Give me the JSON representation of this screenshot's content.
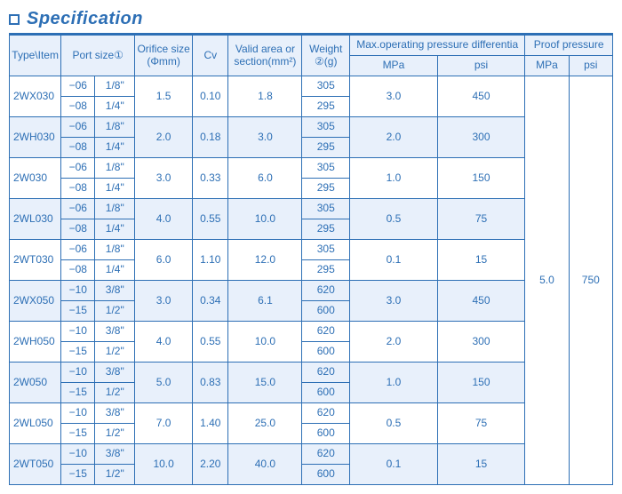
{
  "title": "Specification",
  "header": {
    "typeItem": "Type\\Item",
    "port": "Port size①",
    "orifice": "Orifice size (Φmm)",
    "cv": "Cv",
    "area": "Valid area or section(mm²)",
    "weight": "Weight ②(g)",
    "maxop_group": "Max.operating pressure differentia",
    "proof_group": "Proof pressure",
    "mpa": "MPa",
    "psi": "psi"
  },
  "groups": [
    {
      "type": "2WX030",
      "rows": [
        {
          "code": "−06",
          "port": "1/8\"",
          "weight": "305"
        },
        {
          "code": "−08",
          "port": "1/4\"",
          "weight": "295"
        }
      ],
      "orifice": "1.5",
      "cv": "0.10",
      "area": "1.8",
      "max_mpa": "3.0",
      "max_psi": "450"
    },
    {
      "type": "2WH030",
      "rows": [
        {
          "code": "−06",
          "port": "1/8\"",
          "weight": "305"
        },
        {
          "code": "−08",
          "port": "1/4\"",
          "weight": "295"
        }
      ],
      "orifice": "2.0",
      "cv": "0.18",
      "area": "3.0",
      "max_mpa": "2.0",
      "max_psi": "300"
    },
    {
      "type": "2W030",
      "rows": [
        {
          "code": "−06",
          "port": "1/8\"",
          "weight": "305"
        },
        {
          "code": "−08",
          "port": "1/4\"",
          "weight": "295"
        }
      ],
      "orifice": "3.0",
      "cv": "0.33",
      "area": "6.0",
      "max_mpa": "1.0",
      "max_psi": "150"
    },
    {
      "type": "2WL030",
      "rows": [
        {
          "code": "−06",
          "port": "1/8\"",
          "weight": "305"
        },
        {
          "code": "−08",
          "port": "1/4\"",
          "weight": "295"
        }
      ],
      "orifice": "4.0",
      "cv": "0.55",
      "area": "10.0",
      "max_mpa": "0.5",
      "max_psi": "75"
    },
    {
      "type": "2WT030",
      "rows": [
        {
          "code": "−06",
          "port": "1/8\"",
          "weight": "305"
        },
        {
          "code": "−08",
          "port": "1/4\"",
          "weight": "295"
        }
      ],
      "orifice": "6.0",
      "cv": "1.10",
      "area": "12.0",
      "max_mpa": "0.1",
      "max_psi": "15"
    },
    {
      "type": "2WX050",
      "rows": [
        {
          "code": "−10",
          "port": "3/8\"",
          "weight": "620"
        },
        {
          "code": "−15",
          "port": "1/2\"",
          "weight": "600"
        }
      ],
      "orifice": "3.0",
      "cv": "0.34",
      "area": "6.1",
      "max_mpa": "3.0",
      "max_psi": "450"
    },
    {
      "type": "2WH050",
      "rows": [
        {
          "code": "−10",
          "port": "3/8\"",
          "weight": "620"
        },
        {
          "code": "−15",
          "port": "1/2\"",
          "weight": "600"
        }
      ],
      "orifice": "4.0",
      "cv": "0.55",
      "area": "10.0",
      "max_mpa": "2.0",
      "max_psi": "300"
    },
    {
      "type": "2W050",
      "rows": [
        {
          "code": "−10",
          "port": "3/8\"",
          "weight": "620"
        },
        {
          "code": "−15",
          "port": "1/2\"",
          "weight": "600"
        }
      ],
      "orifice": "5.0",
      "cv": "0.83",
      "area": "15.0",
      "max_mpa": "1.0",
      "max_psi": "150"
    },
    {
      "type": "2WL050",
      "rows": [
        {
          "code": "−10",
          "port": "3/8\"",
          "weight": "620"
        },
        {
          "code": "−15",
          "port": "1/2\"",
          "weight": "600"
        }
      ],
      "orifice": "7.0",
      "cv": "1.40",
      "area": "25.0",
      "max_mpa": "0.5",
      "max_psi": "75"
    },
    {
      "type": "2WT050",
      "rows": [
        {
          "code": "−10",
          "port": "3/8\"",
          "weight": "620"
        },
        {
          "code": "−15",
          "port": "1/2\"",
          "weight": "600"
        }
      ],
      "orifice": "10.0",
      "cv": "2.20",
      "area": "40.0",
      "max_mpa": "0.1",
      "max_psi": "15"
    }
  ],
  "proof": {
    "mpa": "5.0",
    "psi": "750"
  },
  "style": {
    "brand_color": "#2d6fb5",
    "header_bg": "#e8f0fb",
    "row_even_bg": "#e8f0fb",
    "row_odd_bg": "#ffffff",
    "font_size_body": 12,
    "font_size_title": 20
  }
}
